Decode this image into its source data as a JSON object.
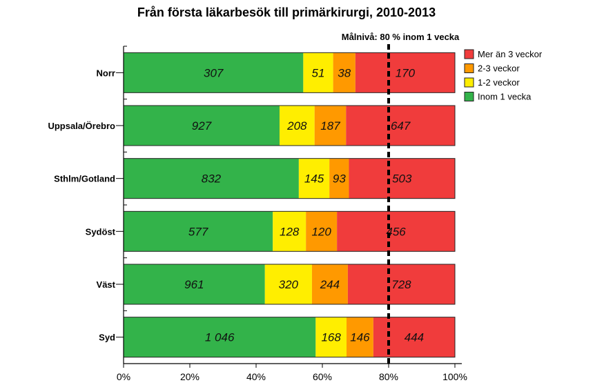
{
  "chart_data": {
    "type": "bar",
    "orientation": "horizontal",
    "stacked": "percent",
    "title": "Från första läkarbesök till primärkirurgi,  2010-2013",
    "target_line": {
      "value": 80,
      "label": "Målnivå: 80 % inom 1 vecka"
    },
    "categories": [
      "Norr",
      "Uppsala/Örebro",
      "Sthlm/Gotland",
      "Sydöst",
      "Väst",
      "Syd"
    ],
    "series": [
      {
        "name": "Inom 1 vecka",
        "color": "#33b34a",
        "values": [
          307,
          927,
          832,
          577,
          961,
          1046
        ],
        "labels": [
          "307",
          "927",
          "832",
          "577",
          "961",
          "1 046"
        ]
      },
      {
        "name": "1-2 veckor",
        "color": "#ffee00",
        "values": [
          51,
          208,
          145,
          128,
          320,
          168
        ],
        "labels": [
          "51",
          "208",
          "145",
          "128",
          "320",
          "168"
        ]
      },
      {
        "name": "2-3 veckor",
        "color": "#ff9900",
        "values": [
          38,
          187,
          93,
          120,
          244,
          146
        ],
        "labels": [
          "38",
          "187",
          "93",
          "120",
          "244",
          "146"
        ]
      },
      {
        "name": "Mer än 3 veckor",
        "color": "#f03c3c",
        "values": [
          170,
          647,
          503,
          456,
          728,
          444
        ],
        "labels": [
          "170",
          "647",
          "503",
          "456",
          "728",
          "444"
        ]
      }
    ],
    "legend_order": [
      "Mer än 3 veckor",
      "2-3 veckor",
      "1-2 veckor",
      "Inom 1 vecka"
    ],
    "x_ticks": [
      "0%",
      "20%",
      "40%",
      "60%",
      "80%",
      "100%"
    ],
    "xlim": [
      0,
      100
    ],
    "legend_position": "top-right",
    "grid": false
  }
}
